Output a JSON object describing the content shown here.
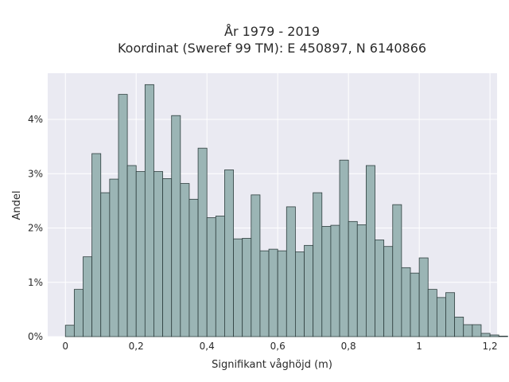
{
  "chart_data": {
    "type": "bar",
    "title": [
      "År 1979 - 2019",
      "Koordinat (Sweref 99 TM): E 450897, N 6140866"
    ],
    "xlabel": "Signifikant våghöjd (m)",
    "ylabel": "Andel",
    "xlim": [
      -0.05,
      1.22
    ],
    "ylim": [
      0,
      0.0485
    ],
    "grid": true,
    "x_ticks": [
      0,
      0.2,
      0.4,
      0.6,
      0.8,
      1.0,
      1.2
    ],
    "x_tick_labels": [
      "0",
      "0,2",
      "0,4",
      "0,6",
      "0,8",
      "1",
      "1,2"
    ],
    "y_ticks": [
      0,
      0.01,
      0.02,
      0.03,
      0.04
    ],
    "y_tick_labels": [
      "0%",
      "1%",
      "2%",
      "3%",
      "4%"
    ],
    "bin_start": 0.0,
    "bin_width": 0.025,
    "values": [
      0.0021,
      0.0087,
      0.0147,
      0.0337,
      0.0265,
      0.029,
      0.0446,
      0.0315,
      0.0304,
      0.0464,
      0.0304,
      0.0291,
      0.0407,
      0.0282,
      0.0253,
      0.0347,
      0.0219,
      0.0222,
      0.0307,
      0.018,
      0.0181,
      0.0261,
      0.0158,
      0.0161,
      0.0158,
      0.0239,
      0.0156,
      0.0168,
      0.0265,
      0.0203,
      0.0205,
      0.0325,
      0.0212,
      0.0206,
      0.0315,
      0.0178,
      0.0166,
      0.0243,
      0.0127,
      0.0117,
      0.0145,
      0.0087,
      0.0072,
      0.0081,
      0.0036,
      0.0022,
      0.0022,
      0.0006,
      0.0003,
      0.0001
    ],
    "colors": {
      "bar_fill": "#9bb5b5",
      "bar_edge": "#2f3f3f",
      "plot_bg": "#eaeaf2",
      "grid": "#ffffff"
    }
  }
}
